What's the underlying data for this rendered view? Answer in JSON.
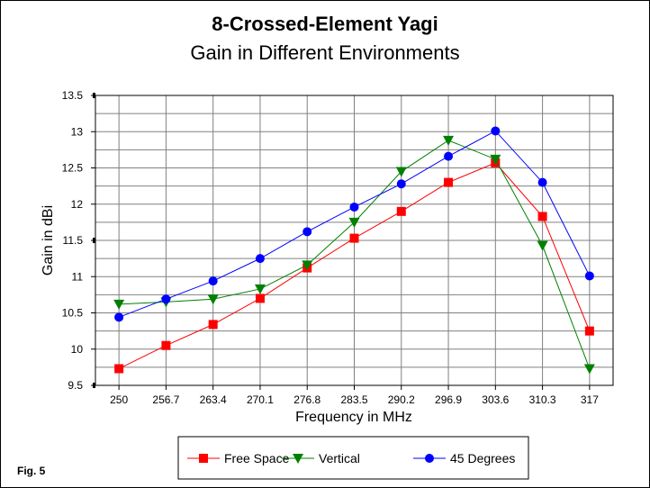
{
  "fig_label": "Fig. 5",
  "chart_data": {
    "type": "line",
    "title": "8-Crossed-Element Yagi",
    "subtitle": "Gain in Different Environments",
    "xlabel": "Frequency in MHz",
    "ylabel": "Gain in dBi",
    "categories": [
      "250",
      "256.7",
      "263.4",
      "270.1",
      "276.8",
      "283.5",
      "290.2",
      "296.9",
      "303.6",
      "310.3",
      "317"
    ],
    "ylim": [
      9.5,
      13.5
    ],
    "yticks": [
      "9.5",
      "10",
      "10.5",
      "11",
      "11.5",
      "12",
      "12.5",
      "13",
      "13.5"
    ],
    "grid": true,
    "legend_position": "bottom",
    "series": [
      {
        "name": "Free Space",
        "color": "#ff0000",
        "marker": "square",
        "values": [
          9.73,
          10.05,
          10.34,
          10.7,
          11.12,
          11.53,
          11.9,
          12.3,
          12.57,
          11.83,
          10.25
        ]
      },
      {
        "name": "Vertical",
        "color": "#008000",
        "marker": "triangle-down",
        "values": [
          10.62,
          10.65,
          10.69,
          10.83,
          11.16,
          11.75,
          12.45,
          12.88,
          12.62,
          11.43,
          9.73
        ]
      },
      {
        "name": "45 Degrees",
        "color": "#0000ff",
        "marker": "circle",
        "values": [
          10.44,
          10.69,
          10.94,
          11.25,
          11.62,
          11.96,
          12.28,
          12.66,
          13.01,
          12.3,
          11.01
        ]
      }
    ]
  }
}
